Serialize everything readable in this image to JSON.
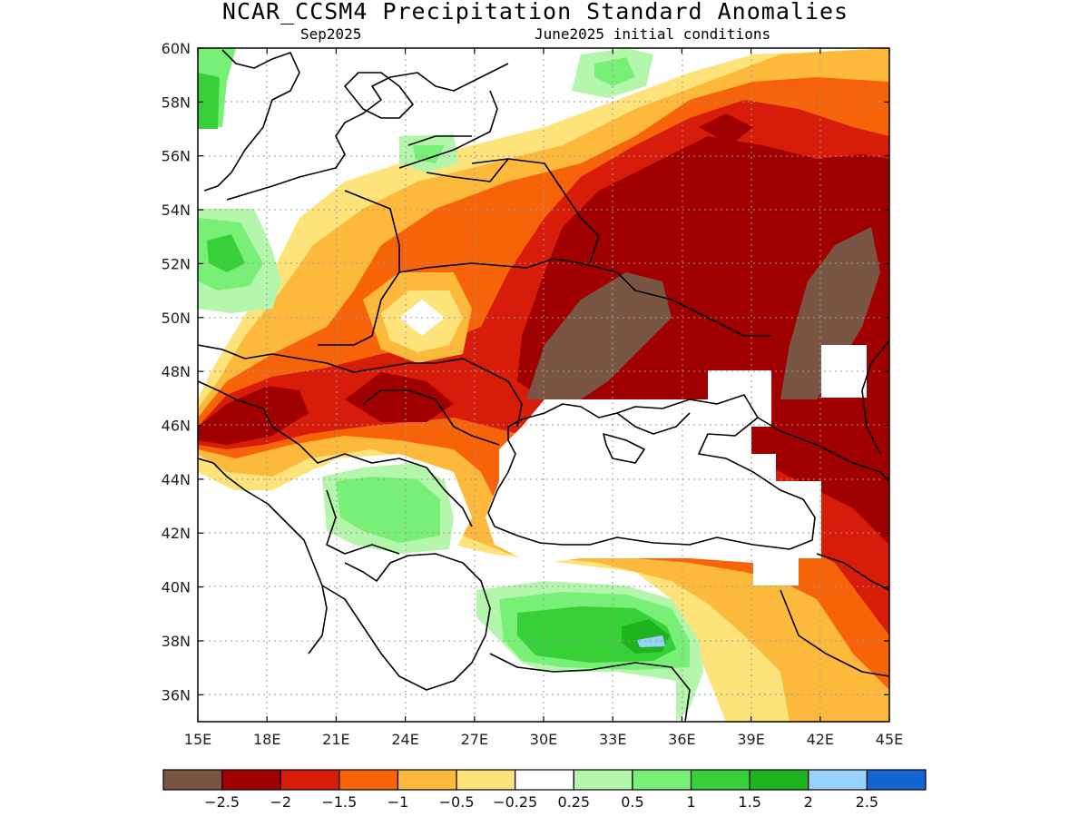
{
  "title": "NCAR_CCSM4 Precipitation Standard Anomalies",
  "subtitle_left": "Sep2025",
  "subtitle_right": "June2025 initial conditions",
  "axes": {
    "x_ticks": [
      "15E",
      "18E",
      "21E",
      "24E",
      "27E",
      "30E",
      "33E",
      "36E",
      "39E",
      "42E",
      "45E"
    ],
    "y_ticks": [
      "60N",
      "58N",
      "56N",
      "54N",
      "52N",
      "50N",
      "48N",
      "46N",
      "44N",
      "42N",
      "40N",
      "38N",
      "36N"
    ],
    "lon_range": [
      15,
      45
    ],
    "lat_range": [
      35,
      60
    ]
  },
  "colorbar": {
    "colors": [
      "#7b5544",
      "#a00000",
      "#d81c0a",
      "#f76308",
      "#fdb93c",
      "#fde37a",
      "#ffffff",
      "#b4f7ac",
      "#78f078",
      "#38d038",
      "#1eb41e",
      "#96d2fa",
      "#1464d2"
    ],
    "labels": [
      "−2.5",
      "−2",
      "−1.5",
      "−1",
      "−0.5",
      "−0.25",
      "0.25",
      "0.5",
      "1",
      "1.5",
      "2",
      "2.5"
    ]
  },
  "legend_semantics": {
    "dry_colors": "browns and reds",
    "wet_colors": "greens and blues"
  }
}
